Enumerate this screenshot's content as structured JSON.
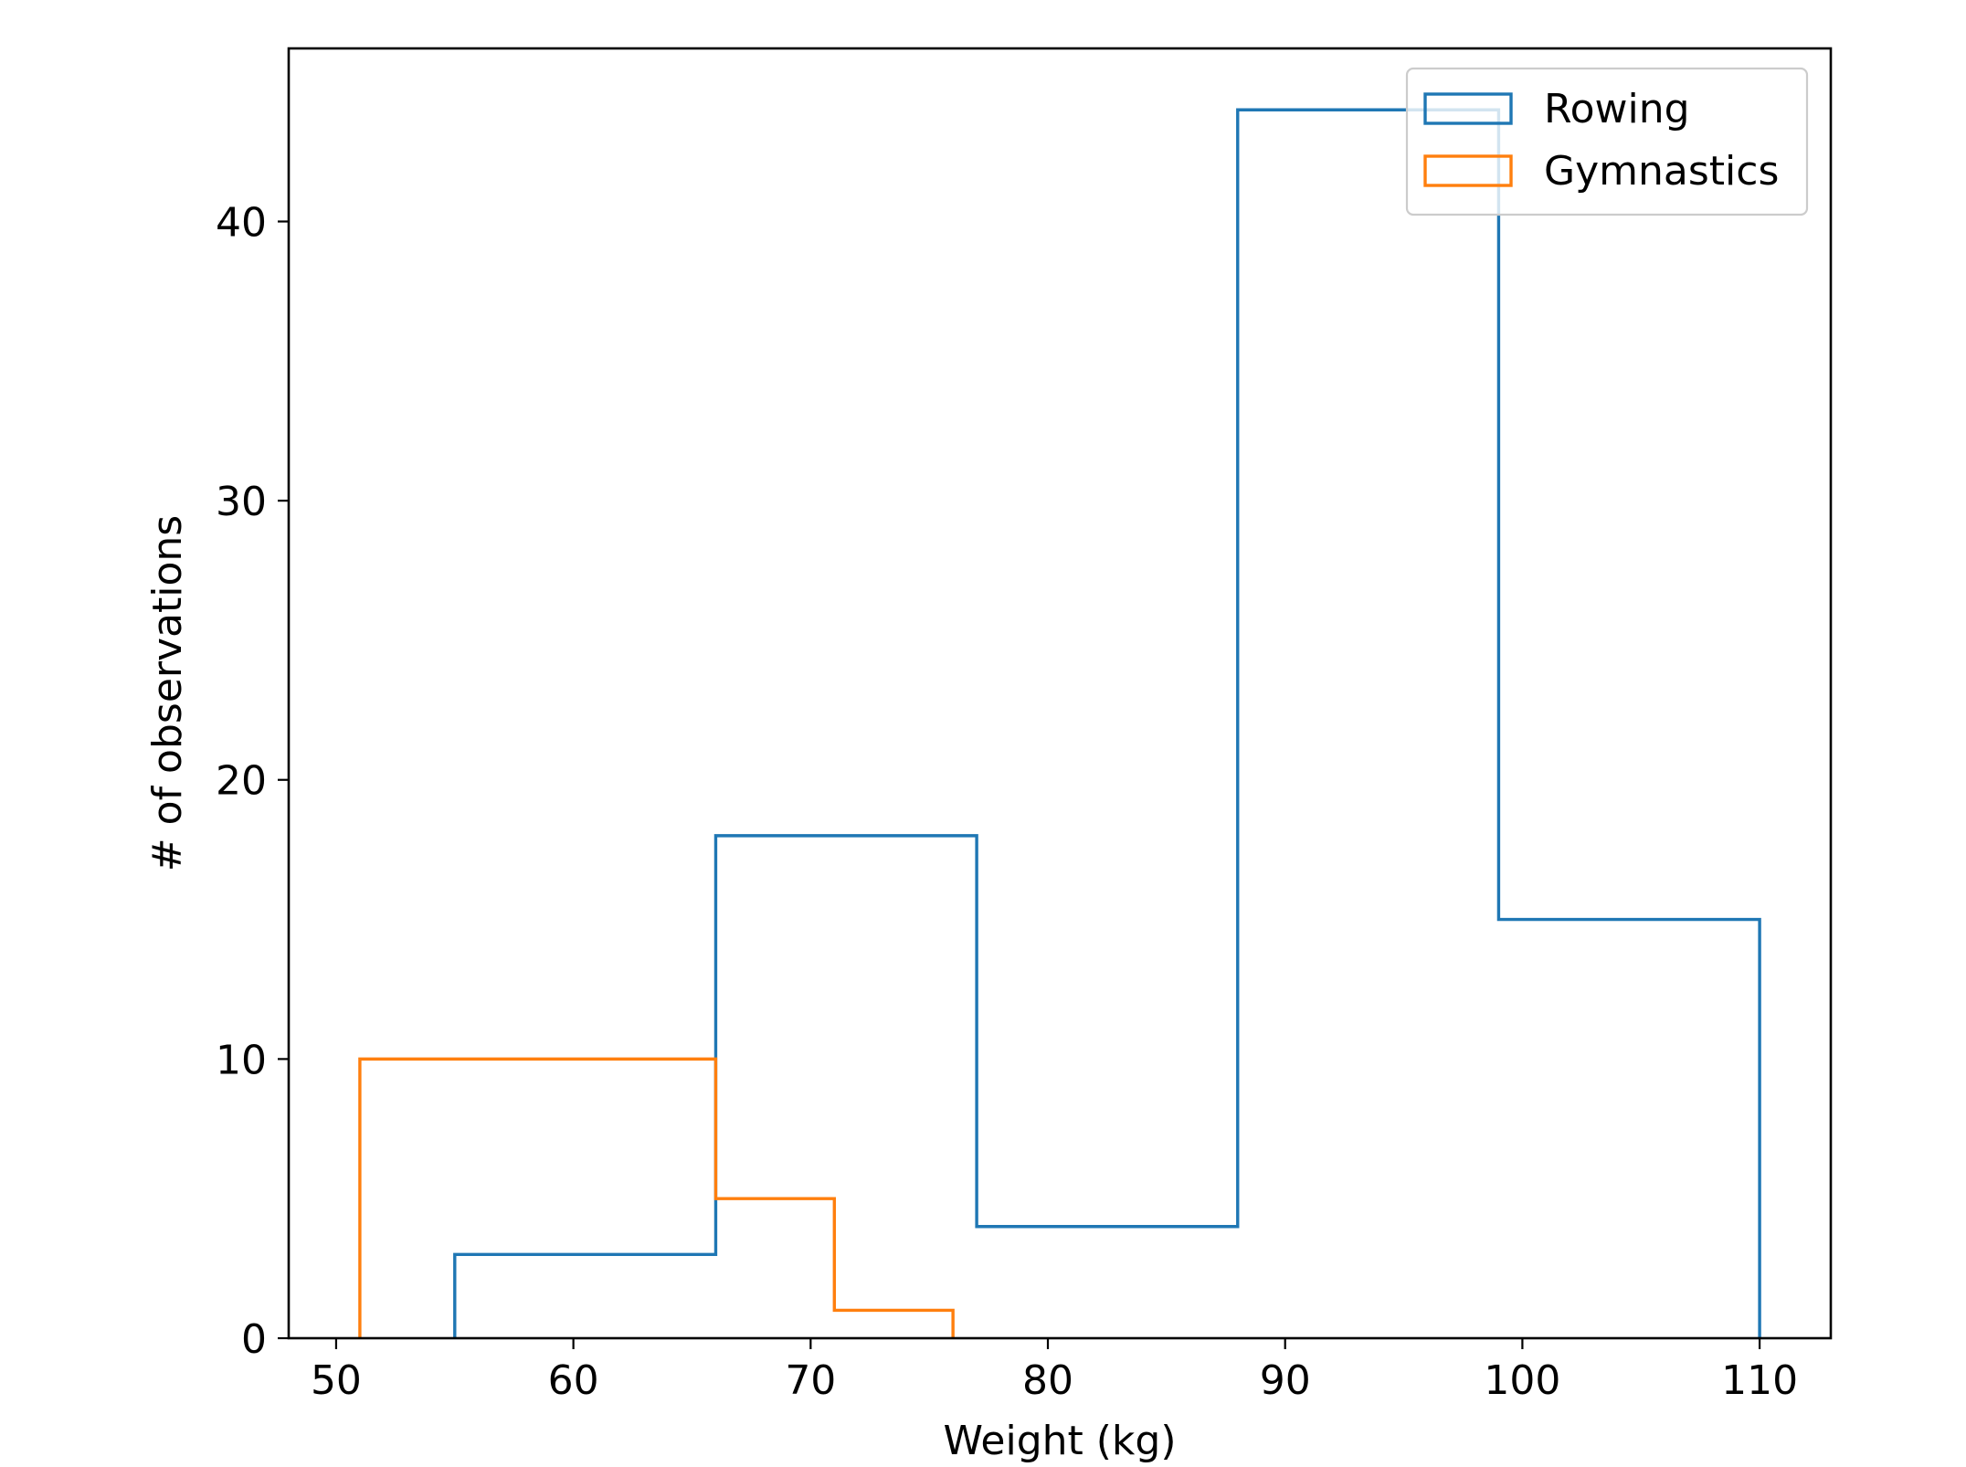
{
  "chart_data": {
    "type": "histogram-step",
    "title": "",
    "xlabel": "Weight (kg)",
    "ylabel": "# of observations",
    "xlim": [
      48,
      113
    ],
    "ylim": [
      0,
      46.2
    ],
    "xticks": [
      50,
      60,
      70,
      80,
      90,
      100,
      110
    ],
    "yticks": [
      0,
      10,
      20,
      30,
      40
    ],
    "grid": false,
    "legend": "top-right",
    "series": [
      {
        "name": "Rowing",
        "color": "#1f77b4",
        "bin_edges": [
          55,
          66,
          77,
          88,
          99,
          110
        ],
        "counts": [
          3,
          18,
          4,
          44,
          15
        ]
      },
      {
        "name": "Gymnastics",
        "color": "#ff7f0e",
        "bin_edges": [
          51,
          56,
          61,
          66,
          71,
          76
        ],
        "counts": [
          10,
          10,
          10,
          5,
          1
        ]
      }
    ]
  }
}
